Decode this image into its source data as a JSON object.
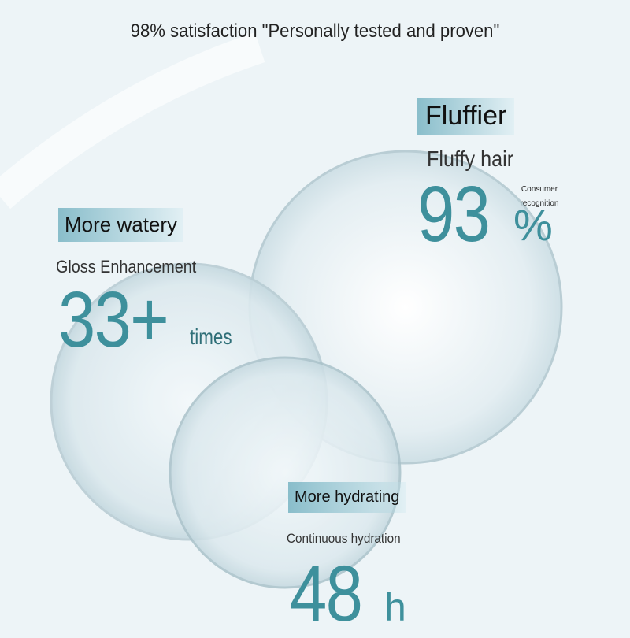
{
  "header": {
    "title": "98% satisfaction \"Personally tested and proven\""
  },
  "features": [
    {
      "tag": "Fluffier",
      "subtitle": "Fluffy hair",
      "figure": "93",
      "unit": "%",
      "note": "Consumer recognition"
    },
    {
      "tag": "More watery",
      "subtitle": "Gloss Enhancement",
      "figure": "33+",
      "unit": "times"
    },
    {
      "tag": "More hydrating",
      "subtitle": "Continuous hydration",
      "figure": "48",
      "unit": "h"
    }
  ]
}
